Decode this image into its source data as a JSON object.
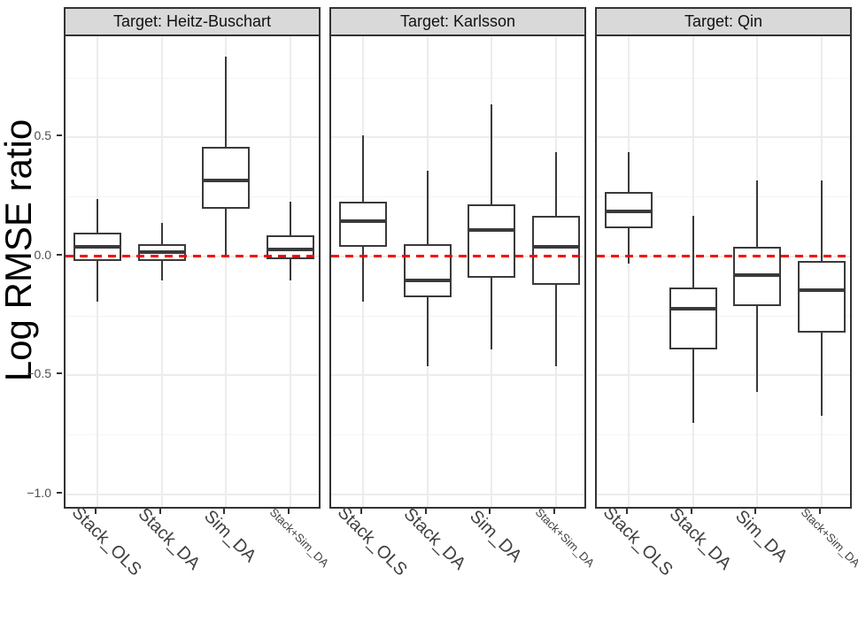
{
  "chart_data": {
    "type": "boxplot",
    "facet_variable": "Target",
    "ylabel": "Log RMSE ratio",
    "categories": [
      "Stack_OLS",
      "Stack_DA",
      "Sim_DA",
      "Stack+Sim_DA"
    ],
    "ylim": [
      -1.067,
      0.925
    ],
    "y_ticks": [
      {
        "value": 0.5,
        "label": "0.5"
      },
      {
        "value": 0.0,
        "label": "0.0"
      },
      {
        "value": -0.5,
        "label": "−0.5"
      },
      {
        "value": -1.0,
        "label": "−1.0"
      }
    ],
    "y_minor_ticks": [
      0.75,
      0.25,
      -0.25,
      -0.75
    ],
    "grid": "on",
    "reference_line": {
      "y": 0.0,
      "color": "#ff0000",
      "style": "dashed"
    },
    "panels": [
      {
        "title": "Target: Heitz-Buschart",
        "boxes": [
          {
            "category": "Stack_OLS",
            "whisker_low": -0.19,
            "q1": -0.02,
            "median": 0.04,
            "q3": 0.1,
            "whisker_high": 0.24
          },
          {
            "category": "Stack_DA",
            "whisker_low": -0.1,
            "q1": -0.02,
            "median": 0.02,
            "q3": 0.05,
            "whisker_high": 0.14
          },
          {
            "category": "Sim_DA",
            "whisker_low": 0.0,
            "q1": 0.2,
            "median": 0.32,
            "q3": 0.46,
            "whisker_high": 0.84
          },
          {
            "category": "Stack+Sim_DA",
            "whisker_low": -0.1,
            "q1": -0.01,
            "median": 0.03,
            "q3": 0.09,
            "whisker_high": 0.23
          }
        ]
      },
      {
        "title": "Target: Karlsson",
        "boxes": [
          {
            "category": "Stack_OLS",
            "whisker_low": -0.19,
            "q1": 0.04,
            "median": 0.15,
            "q3": 0.23,
            "whisker_high": 0.51
          },
          {
            "category": "Stack_DA",
            "whisker_low": -0.46,
            "q1": -0.17,
            "median": -0.1,
            "q3": 0.05,
            "whisker_high": 0.36
          },
          {
            "category": "Sim_DA",
            "whisker_low": -0.39,
            "q1": -0.09,
            "median": 0.11,
            "q3": 0.22,
            "whisker_high": 0.64
          },
          {
            "category": "Stack+Sim_DA",
            "whisker_low": -0.46,
            "q1": -0.12,
            "median": 0.04,
            "q3": 0.17,
            "whisker_high": 0.44
          }
        ]
      },
      {
        "title": "Target: Qin",
        "boxes": [
          {
            "category": "Stack_OLS",
            "whisker_low": -0.03,
            "q1": 0.12,
            "median": 0.19,
            "q3": 0.27,
            "whisker_high": 0.44
          },
          {
            "category": "Stack_DA",
            "whisker_low": -0.7,
            "q1": -0.39,
            "median": -0.22,
            "q3": -0.13,
            "whisker_high": 0.17
          },
          {
            "category": "Sim_DA",
            "whisker_low": -0.57,
            "q1": -0.21,
            "median": -0.08,
            "q3": 0.04,
            "whisker_high": 0.32
          },
          {
            "category": "Stack+Sim_DA",
            "whisker_low": -0.67,
            "q1": -0.32,
            "median": -0.14,
            "q3": -0.02,
            "whisker_high": 0.32
          }
        ]
      }
    ],
    "colors": {
      "box_stroke": "#3a3a3a",
      "strip_background": "#d9d9d9",
      "panel_border": "#333333",
      "grid_major": "#ececec",
      "grid_minor": "#f4f4f4",
      "reference": "#ff0000",
      "axis_text": "#4d4d4d"
    }
  }
}
